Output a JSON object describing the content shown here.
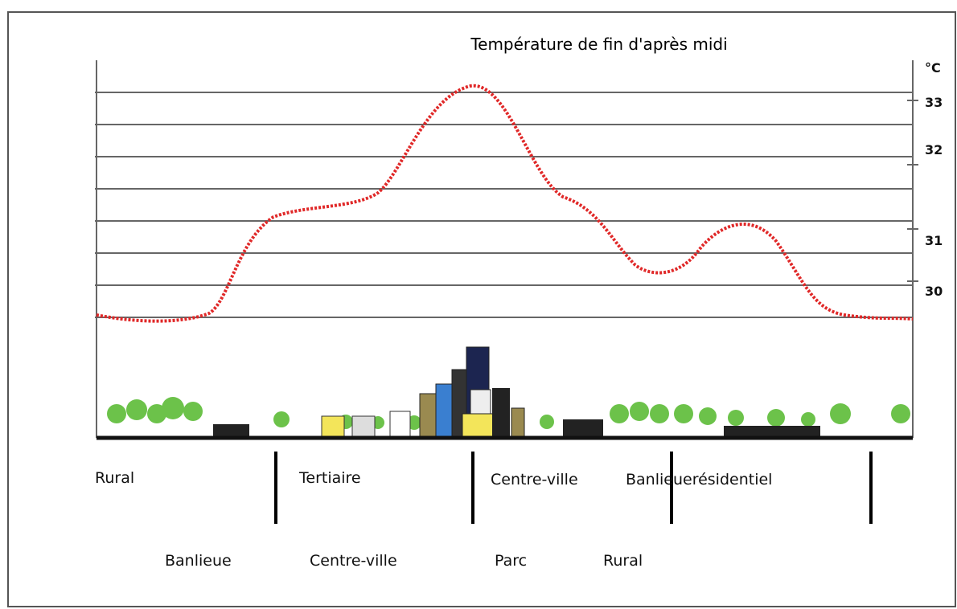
{
  "title": "Température de fin d'après midi",
  "axis": {
    "unit": "°C",
    "labels": [
      "33",
      "32",
      "31",
      "30"
    ]
  },
  "zones_top": [
    "Rural",
    "Tertiaire",
    "Centre-ville",
    "Banlieuerésidentiel"
  ],
  "zones_bottom": [
    "Banlieue",
    "Centre-ville",
    "Parc",
    "Rural"
  ]
}
